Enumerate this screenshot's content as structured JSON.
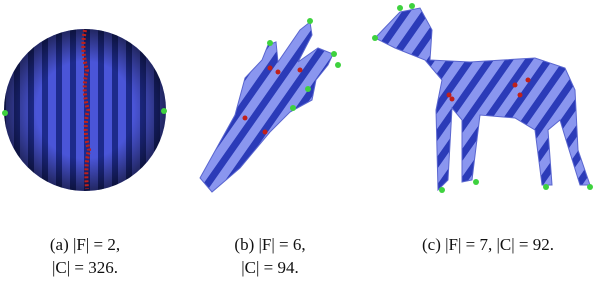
{
  "subfigures": [
    {
      "caption": [
        "(a) |F| = 2,",
        "|C| = 326."
      ]
    },
    {
      "caption": [
        "(b) |F| = 6,",
        "|C| = 94."
      ]
    },
    {
      "caption": [
        "(c) |F| = 7, |C| = 92."
      ]
    }
  ]
}
